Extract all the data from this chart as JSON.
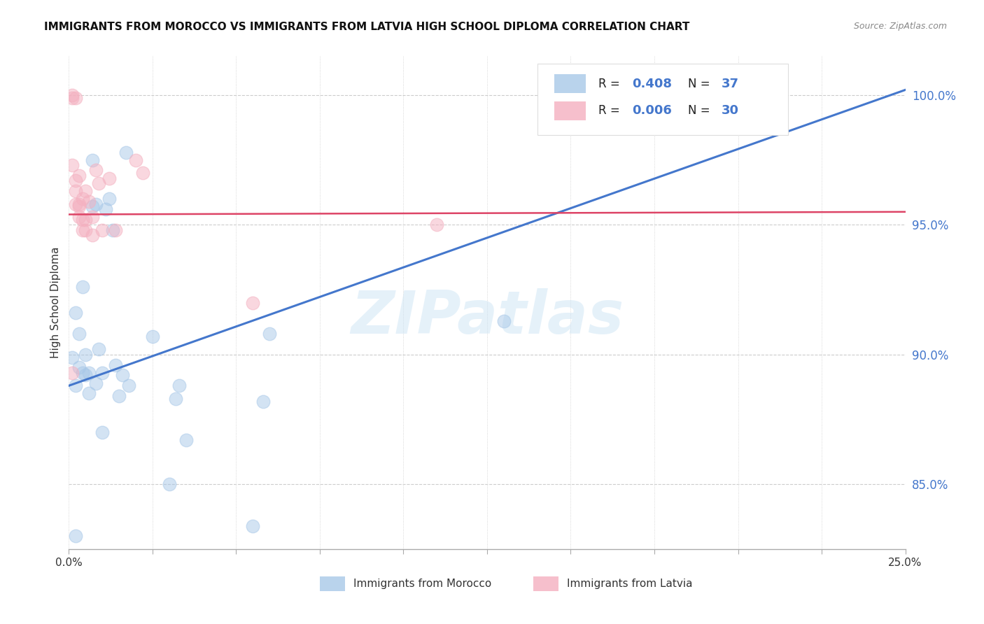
{
  "title": "IMMIGRANTS FROM MOROCCO VS IMMIGRANTS FROM LATVIA HIGH SCHOOL DIPLOMA CORRELATION CHART",
  "source": "Source: ZipAtlas.com",
  "ylabel": "High School Diploma",
  "ytick_labels": [
    "85.0%",
    "90.0%",
    "95.0%",
    "100.0%"
  ],
  "ytick_values": [
    0.85,
    0.9,
    0.95,
    1.0
  ],
  "xtick_values": [
    0.0,
    0.025,
    0.05,
    0.075,
    0.1,
    0.125,
    0.15,
    0.175,
    0.2,
    0.225,
    0.25
  ],
  "xtick_labels": [
    "0.0%",
    "",
    "",
    "",
    "",
    "",
    "",
    "",
    "",
    "",
    "25.0%"
  ],
  "xlim": [
    0.0,
    0.25
  ],
  "ylim": [
    0.825,
    1.015
  ],
  "legend_r1": "0.408",
  "legend_n1": "37",
  "legend_r2": "0.006",
  "legend_n2": "30",
  "legend_bottom1": "Immigrants from Morocco",
  "legend_bottom2": "Immigrants from Latvia",
  "watermark": "ZIPatlas",
  "blue_color": "#a8c8e8",
  "pink_color": "#f4b0c0",
  "blue_line_color": "#4477cc",
  "pink_line_color": "#dd4466",
  "text_blue": "#4477cc",
  "blue_scatter": [
    [
      0.001,
      0.899
    ],
    [
      0.002,
      0.916
    ],
    [
      0.002,
      0.888
    ],
    [
      0.003,
      0.895
    ],
    [
      0.003,
      0.908
    ],
    [
      0.004,
      0.893
    ],
    [
      0.004,
      0.926
    ],
    [
      0.005,
      0.892
    ],
    [
      0.005,
      0.9
    ],
    [
      0.006,
      0.893
    ],
    [
      0.006,
      0.885
    ],
    [
      0.007,
      0.975
    ],
    [
      0.007,
      0.957
    ],
    [
      0.008,
      0.958
    ],
    [
      0.008,
      0.889
    ],
    [
      0.009,
      0.902
    ],
    [
      0.01,
      0.87
    ],
    [
      0.01,
      0.893
    ],
    [
      0.011,
      0.956
    ],
    [
      0.012,
      0.96
    ],
    [
      0.013,
      0.948
    ],
    [
      0.014,
      0.896
    ],
    [
      0.015,
      0.884
    ],
    [
      0.016,
      0.892
    ],
    [
      0.017,
      0.978
    ],
    [
      0.018,
      0.888
    ],
    [
      0.025,
      0.907
    ],
    [
      0.03,
      0.85
    ],
    [
      0.032,
      0.883
    ],
    [
      0.033,
      0.888
    ],
    [
      0.035,
      0.867
    ],
    [
      0.055,
      0.834
    ],
    [
      0.058,
      0.882
    ],
    [
      0.06,
      0.908
    ],
    [
      0.13,
      0.913
    ],
    [
      0.145,
      1.0
    ],
    [
      0.002,
      0.83
    ]
  ],
  "pink_scatter": [
    [
      0.001,
      1.0
    ],
    [
      0.001,
      0.999
    ],
    [
      0.001,
      0.973
    ],
    [
      0.002,
      0.999
    ],
    [
      0.002,
      0.967
    ],
    [
      0.002,
      0.963
    ],
    [
      0.002,
      0.958
    ],
    [
      0.003,
      0.969
    ],
    [
      0.003,
      0.958
    ],
    [
      0.003,
      0.957
    ],
    [
      0.003,
      0.953
    ],
    [
      0.004,
      0.96
    ],
    [
      0.004,
      0.952
    ],
    [
      0.004,
      0.948
    ],
    [
      0.005,
      0.963
    ],
    [
      0.005,
      0.952
    ],
    [
      0.005,
      0.948
    ],
    [
      0.006,
      0.959
    ],
    [
      0.007,
      0.953
    ],
    [
      0.007,
      0.946
    ],
    [
      0.008,
      0.971
    ],
    [
      0.009,
      0.966
    ],
    [
      0.01,
      0.948
    ],
    [
      0.012,
      0.968
    ],
    [
      0.014,
      0.948
    ],
    [
      0.02,
      0.975
    ],
    [
      0.022,
      0.97
    ],
    [
      0.055,
      0.92
    ],
    [
      0.11,
      0.95
    ],
    [
      0.001,
      0.893
    ]
  ],
  "blue_trendline": [
    [
      0.0,
      0.888
    ],
    [
      0.25,
      1.002
    ]
  ],
  "pink_trendline": [
    [
      0.0,
      0.954
    ],
    [
      0.25,
      0.955
    ]
  ]
}
